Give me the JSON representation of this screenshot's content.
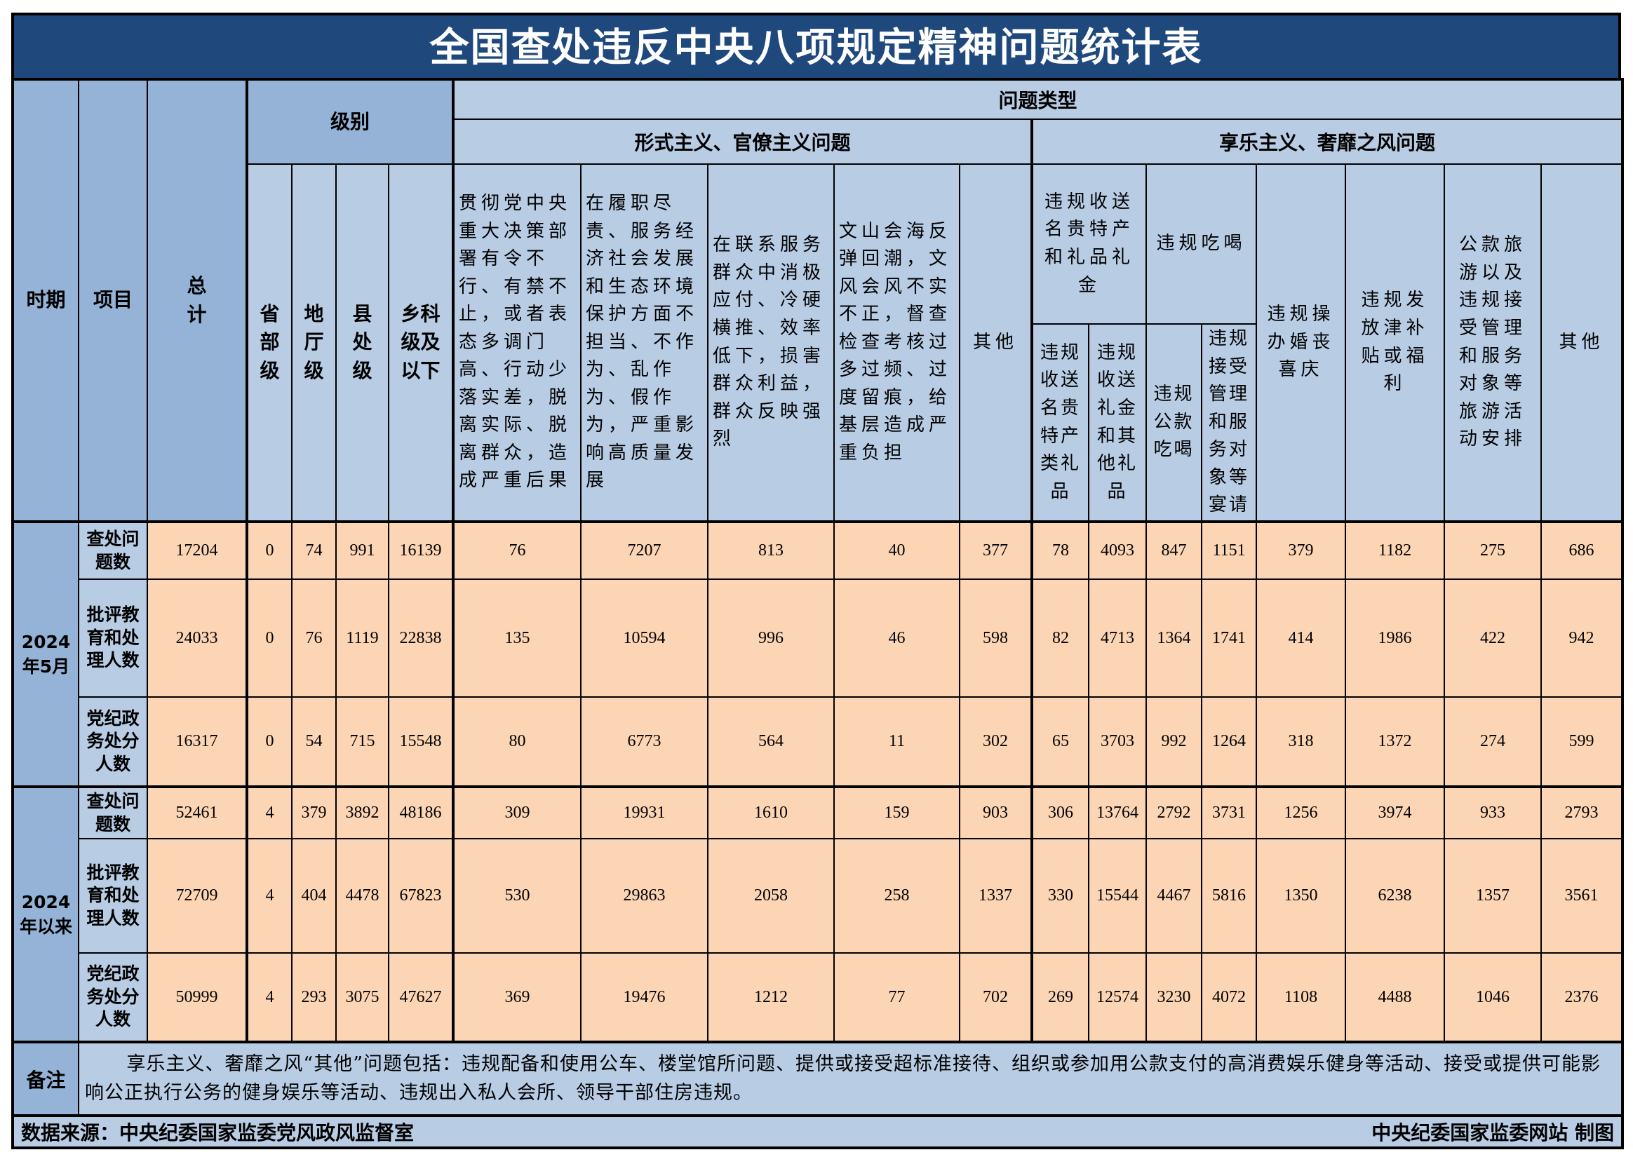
{
  "title": "全国查处违反中央八项规定精神问题统计表",
  "header": {
    "period_label": "时期",
    "item_label": "项目",
    "total_label": "总计",
    "level_group": "级别",
    "levels": [
      "省部级",
      "地厅级",
      "县处级",
      "乡科级及以下"
    ],
    "problem_type": "问题类型",
    "formalism_group": "形式主义、官僚主义问题",
    "hedonism_group": "享乐主义、奢靡之风问题",
    "formalism_items": [
      "贯彻党中央重大决策部署有令不行、有禁不止，或者表态多调门高、行动少落实差，脱离实际、脱离群众，造成严重后果",
      "在履职尽责、服务经济社会发展和生态环境保护方面不担当、不作为、乱作为、假作为，严重影响高质量发展",
      "在联系服务群众中消极应付、冷硬横推、效率低下，损害群众利益，群众反映强烈",
      "文山会海反弹回潮，文风会风不实不正，督查检查考核过多过频、过度留痕，给基层造成严重负担",
      "其他"
    ],
    "gifts_group": "违规收送名贵特产和礼品礼金",
    "gifts_sub": [
      "违规收送名贵特产类礼品",
      "违规收送礼金和其他礼品"
    ],
    "dining_group": "违规吃喝",
    "dining_sub": [
      "违规公款吃喝",
      "违规接受管理和服务对象等宴请"
    ],
    "hedonism_others": [
      "违规操办婚丧喜庆",
      "违规发放津补贴或福利",
      "公款旅游以及违规接受管理和服务对象等旅游活动安排",
      "其他"
    ]
  },
  "periods": [
    {
      "label": "2024年5月",
      "rows": [
        {
          "item": "查处问题数",
          "values": [
            "17204",
            "0",
            "74",
            "991",
            "16139",
            "76",
            "7207",
            "813",
            "40",
            "377",
            "78",
            "4093",
            "847",
            "1151",
            "379",
            "1182",
            "275",
            "686"
          ]
        },
        {
          "item": "批评教育和处理人数",
          "values": [
            "24033",
            "0",
            "76",
            "1119",
            "22838",
            "135",
            "10594",
            "996",
            "46",
            "598",
            "82",
            "4713",
            "1364",
            "1741",
            "414",
            "1986",
            "422",
            "942"
          ]
        },
        {
          "item": "党纪政务处分人数",
          "values": [
            "16317",
            "0",
            "54",
            "715",
            "15548",
            "80",
            "6773",
            "564",
            "11",
            "302",
            "65",
            "3703",
            "992",
            "1264",
            "318",
            "1372",
            "274",
            "599"
          ]
        }
      ]
    },
    {
      "label": "2024年以来",
      "rows": [
        {
          "item": "查处问题数",
          "values": [
            "52461",
            "4",
            "379",
            "3892",
            "48186",
            "309",
            "19931",
            "1610",
            "159",
            "903",
            "306",
            "13764",
            "2792",
            "3731",
            "1256",
            "3974",
            "933",
            "2793"
          ]
        },
        {
          "item": "批评教育和处理人数",
          "values": [
            "72709",
            "4",
            "404",
            "4478",
            "67823",
            "530",
            "29863",
            "2058",
            "258",
            "1337",
            "330",
            "15544",
            "4467",
            "5816",
            "1350",
            "6238",
            "1357",
            "3561"
          ]
        },
        {
          "item": "党纪政务处分人数",
          "values": [
            "50999",
            "4",
            "293",
            "3075",
            "47627",
            "369",
            "19476",
            "1212",
            "77",
            "702",
            "269",
            "12574",
            "3230",
            "4072",
            "1108",
            "4488",
            "1046",
            "2376"
          ]
        }
      ]
    }
  ],
  "notes": {
    "label": "备注",
    "text": "享乐主义、奢靡之风“其他”问题包括：违规配备和使用公车、楼堂馆所问题、提供或接受超标准接待、组织或参加用公款支付的高消费娱乐健身等活动、接受或提供可能影响公正执行公务的健身娱乐等活动、违规出入私人会所、领导干部住房违规。"
  },
  "footer": {
    "source": "数据来源：中央纪委国家监委党风政风监督室",
    "credit": "中央纪委国家监委网站 制图"
  },
  "colors": {
    "title_bg": "#1f497d",
    "header_dark": "#95b3d7",
    "header_light": "#b8cce4",
    "data_bg": "#fcd5b4"
  }
}
